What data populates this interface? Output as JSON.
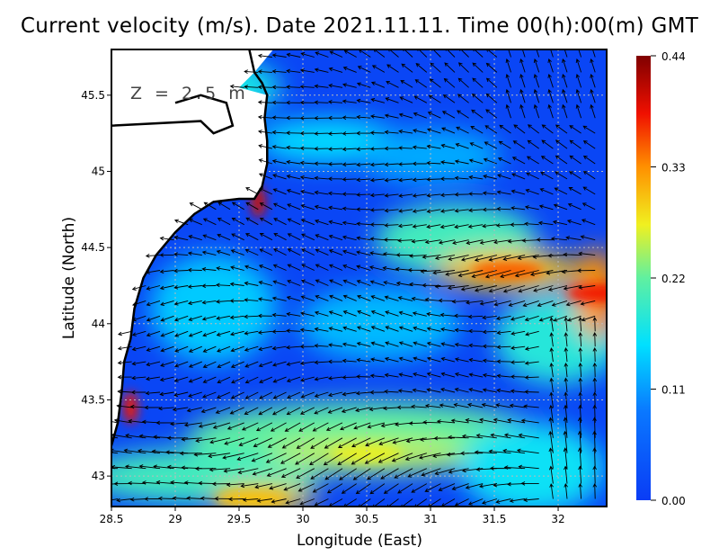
{
  "chart_data": {
    "type": "heatmap",
    "title": "Current velocity (m/s). Date 2021.11.11. Time 00(h):00(m) GMT",
    "annotation": "Z = 2.5 m",
    "xlabel": "Longitude (East)",
    "ylabel": "Latitude (North)",
    "xlim": [
      28.5,
      32.38
    ],
    "ylim": [
      42.8,
      45.8
    ],
    "xticks": [
      "28.5",
      "29",
      "29.5",
      "30",
      "30.5",
      "31",
      "31.5",
      "32"
    ],
    "yticks": [
      "43",
      "43.5",
      "44",
      "44.5",
      "45",
      "45.5"
    ],
    "grid": true,
    "colorbar": {
      "min": 0.0,
      "max": 0.44,
      "ticks": [
        "0.00",
        "0.11",
        "0.22",
        "0.33",
        "0.44"
      ],
      "unit": "m/s"
    },
    "speed_hotspots": [
      {
        "lon": 29.65,
        "lat": 44.8,
        "speed": 0.4
      },
      {
        "lon": 28.65,
        "lat": 43.45,
        "speed": 0.38
      },
      {
        "lon": 31.6,
        "lat": 44.35,
        "speed": 0.35
      },
      {
        "lon": 32.35,
        "lat": 44.2,
        "speed": 0.38
      },
      {
        "lon": 30.5,
        "lat": 43.15,
        "speed": 0.27
      },
      {
        "lon": 29.6,
        "lat": 42.85,
        "speed": 0.3
      }
    ],
    "colors": {
      "low": "#0a46f5",
      "mid": "#00e0ff",
      "high": "#c80000",
      "land": "#ffffff"
    }
  }
}
